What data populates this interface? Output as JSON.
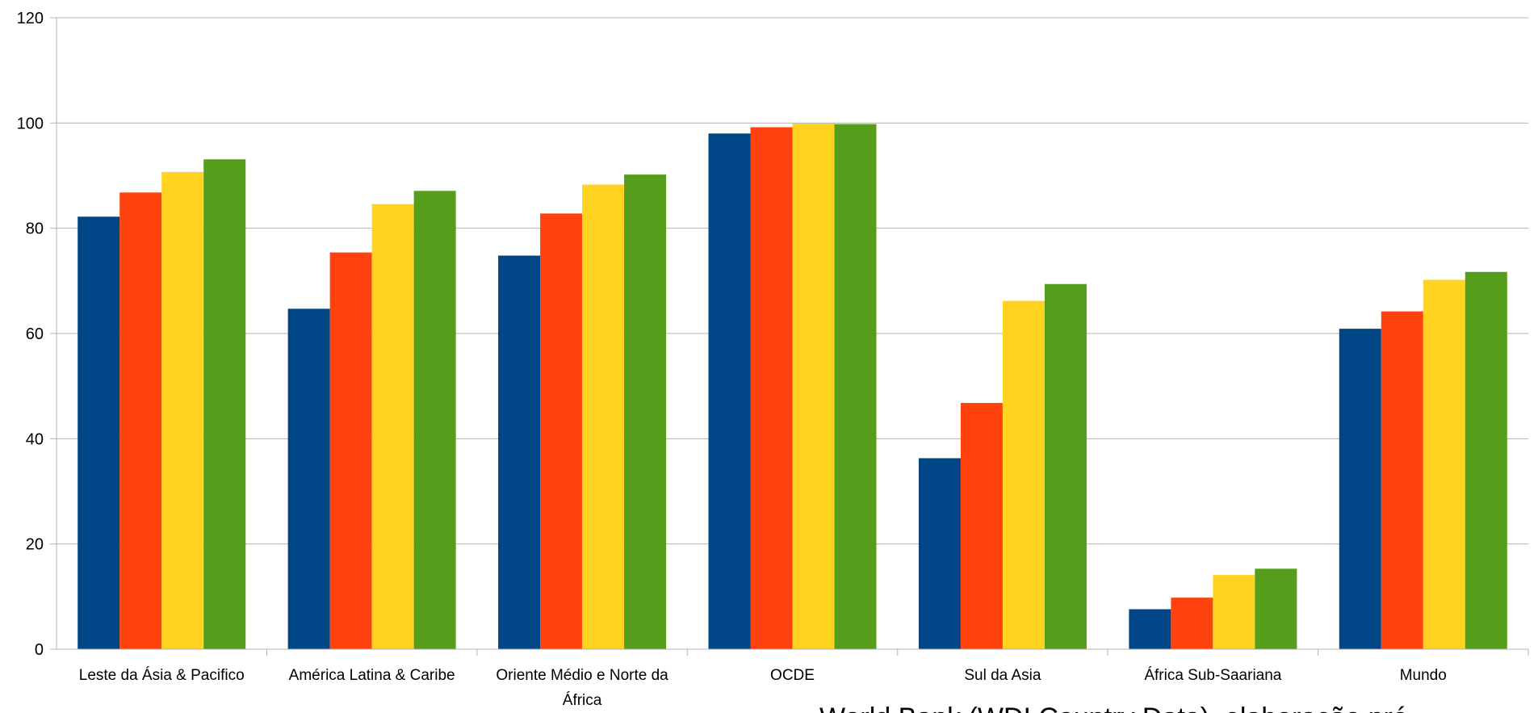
{
  "chart_data": {
    "type": "bar",
    "categories": [
      "Leste da Ásia & Pacifico",
      "América Latina & Caribe",
      "Oriente Médio e Norte da África",
      "OCDE",
      "Sul da Asia",
      "África Sub-Saariana",
      "Mundo"
    ],
    "series": [
      {
        "color": "#004586",
        "values": [
          82.2,
          64.7,
          74.8,
          98.0,
          36.3,
          7.6,
          60.9
        ]
      },
      {
        "color": "#ff420e",
        "values": [
          86.8,
          75.4,
          82.8,
          99.2,
          46.8,
          9.8,
          64.2
        ]
      },
      {
        "color": "#ffd320",
        "values": [
          90.7,
          84.6,
          88.3,
          99.9,
          66.2,
          14.1,
          70.2
        ]
      },
      {
        "color": "#579d1c",
        "values": [
          93.1,
          87.1,
          90.2,
          99.8,
          69.4,
          15.3,
          71.7
        ]
      }
    ],
    "ylim": [
      0,
      120
    ],
    "yticks": [
      0,
      20,
      40,
      60,
      80,
      100,
      120
    ],
    "grid": true,
    "source_text": "World Bank (WDI Country Data), elaboração pró"
  }
}
